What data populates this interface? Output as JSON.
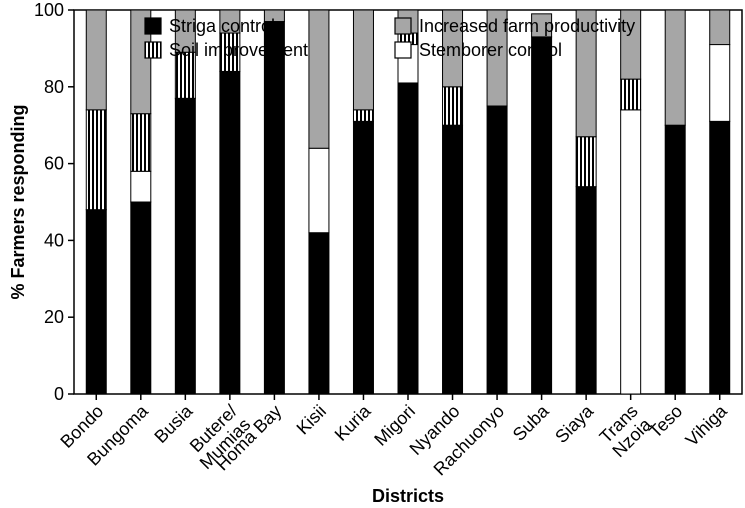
{
  "chart_data": {
    "type": "bar",
    "stacked": true,
    "xlabel": "Districts",
    "ylabel": "% Farmers responding",
    "ylim": [
      0,
      100
    ],
    "yticks": [
      0,
      20,
      40,
      60,
      80,
      100
    ],
    "grid": false,
    "legend_position": "top",
    "categories": [
      [
        "Bondo"
      ],
      [
        "Bungoma"
      ],
      [
        "Busia"
      ],
      [
        "Butere/",
        "Mumias"
      ],
      [
        "Homa Bay"
      ],
      [
        "Kisii"
      ],
      [
        "Kuria"
      ],
      [
        "Migori"
      ],
      [
        "Nyando"
      ],
      [
        "Rachuonyo"
      ],
      [
        "Suba"
      ],
      [
        "Siaya"
      ],
      [
        "Trans",
        "Nzoia"
      ],
      [
        "Teso"
      ],
      [
        "Vihiga"
      ]
    ],
    "series": [
      {
        "name": "Striga control",
        "fill": "#000000",
        "pattern": "solid",
        "values": [
          48,
          50,
          77,
          84,
          97,
          42,
          71,
          81,
          70,
          75,
          93,
          54,
          0,
          70,
          71
        ]
      },
      {
        "name": "Stemborer control",
        "fill": "#ffffff",
        "pattern": "solid",
        "values": [
          0,
          8,
          0,
          0,
          0,
          22,
          0,
          10,
          0,
          0,
          0,
          0,
          74,
          0,
          20
        ]
      },
      {
        "name": "Soil improvement",
        "fill": "#ffffff",
        "pattern": "vertical-stripes",
        "values": [
          26,
          15,
          12,
          10,
          0,
          0,
          3,
          3,
          10,
          0,
          0,
          13,
          8,
          0,
          0
        ]
      },
      {
        "name": "Increased farm productivity",
        "fill": "#a6a6a6",
        "pattern": "solid",
        "values": [
          26,
          27,
          11,
          6,
          3,
          36,
          26,
          6,
          20,
          25,
          6,
          33,
          18,
          30,
          9
        ]
      }
    ],
    "legend": [
      {
        "name": "Striga control",
        "fill": "#000000",
        "pattern": "solid"
      },
      {
        "name": "Increased farm productivity",
        "fill": "#a6a6a6",
        "pattern": "solid"
      },
      {
        "name": "Soil improvement",
        "fill": "#ffffff",
        "pattern": "vertical-stripes"
      },
      {
        "name": "Stemborer control",
        "fill": "#ffffff",
        "pattern": "solid"
      }
    ]
  }
}
